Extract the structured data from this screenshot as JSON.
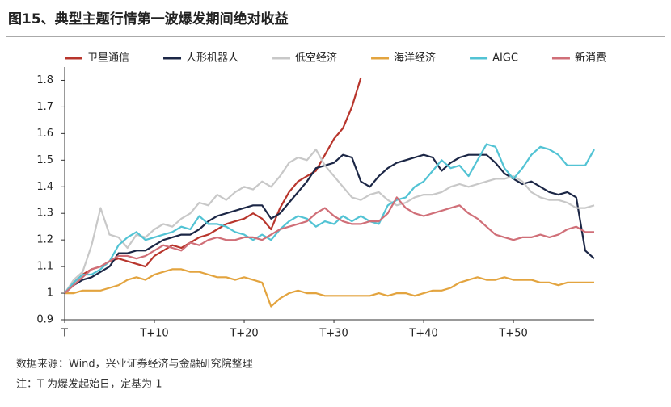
{
  "chart_data": {
    "type": "line",
    "title": "图15、典型主题行情第一波爆发期间绝对收益",
    "source": "数据来源：Wind，兴业证券经济与金融研究院整理",
    "note": "注：T 为爆发起始日，定基为 1",
    "x": [
      0,
      1,
      2,
      3,
      4,
      5,
      6,
      7,
      8,
      9,
      10,
      11,
      12,
      13,
      14,
      15,
      16,
      17,
      18,
      19,
      20,
      21,
      22,
      23,
      24,
      25,
      26,
      27,
      28,
      29,
      30,
      31,
      32,
      33,
      34,
      35,
      36,
      37,
      38,
      39,
      40,
      41,
      42,
      43,
      44,
      45,
      46,
      47,
      48,
      49,
      50,
      51,
      52,
      53,
      54,
      55,
      56,
      57,
      58,
      59
    ],
    "xlim": [
      0,
      59
    ],
    "xticks": [
      {
        "value": 0,
        "label": "T"
      },
      {
        "value": 10,
        "label": "T+10"
      },
      {
        "value": 20,
        "label": "T+20"
      },
      {
        "value": 30,
        "label": "T+30"
      },
      {
        "value": 40,
        "label": "T+40"
      },
      {
        "value": 50,
        "label": "T+50"
      }
    ],
    "ylim": [
      0.9,
      1.85
    ],
    "yticks": [
      0.9,
      1,
      1.1,
      1.2,
      1.3,
      1.4,
      1.5,
      1.6,
      1.7,
      1.8
    ],
    "grid": false,
    "legend": "top",
    "series": [
      {
        "name": "卫星通信",
        "color": "#b8352c",
        "values": [
          1.0,
          1.04,
          1.07,
          1.09,
          1.1,
          1.12,
          1.13,
          1.12,
          1.11,
          1.1,
          1.14,
          1.16,
          1.18,
          1.17,
          1.19,
          1.21,
          1.22,
          1.24,
          1.26,
          1.27,
          1.28,
          1.3,
          1.28,
          1.24,
          1.32,
          1.38,
          1.42,
          1.44,
          1.46,
          1.52,
          1.58,
          1.62,
          1.7,
          1.81,
          null,
          null,
          null,
          null,
          null,
          null,
          null,
          null,
          null,
          null,
          null,
          null,
          null,
          null,
          null,
          null,
          null,
          null,
          null,
          null,
          null,
          null,
          null,
          null,
          null,
          null
        ]
      },
      {
        "name": "人形机器人",
        "color": "#1c2746",
        "values": [
          1.0,
          1.03,
          1.05,
          1.06,
          1.08,
          1.1,
          1.15,
          1.15,
          1.16,
          1.16,
          1.18,
          1.2,
          1.21,
          1.22,
          1.22,
          1.24,
          1.27,
          1.29,
          1.3,
          1.31,
          1.32,
          1.33,
          1.33,
          1.28,
          1.3,
          1.34,
          1.38,
          1.42,
          1.47,
          1.48,
          1.49,
          1.52,
          1.51,
          1.42,
          1.4,
          1.44,
          1.47,
          1.49,
          1.5,
          1.51,
          1.52,
          1.51,
          1.46,
          1.49,
          1.51,
          1.52,
          1.52,
          1.52,
          1.49,
          1.45,
          1.43,
          1.41,
          1.42,
          1.4,
          1.38,
          1.37,
          1.38,
          1.36,
          1.16,
          1.13
        ]
      },
      {
        "name": "低空经济",
        "color": "#c8c8c8",
        "values": [
          1.0,
          1.05,
          1.08,
          1.18,
          1.32,
          1.22,
          1.21,
          1.17,
          1.22,
          1.21,
          1.24,
          1.26,
          1.25,
          1.28,
          1.3,
          1.34,
          1.33,
          1.37,
          1.35,
          1.38,
          1.4,
          1.39,
          1.42,
          1.4,
          1.44,
          1.49,
          1.51,
          1.5,
          1.54,
          1.48,
          1.44,
          1.4,
          1.36,
          1.35,
          1.37,
          1.38,
          1.35,
          1.33,
          1.34,
          1.36,
          1.37,
          1.37,
          1.38,
          1.4,
          1.41,
          1.4,
          1.41,
          1.42,
          1.43,
          1.43,
          1.44,
          1.42,
          1.38,
          1.36,
          1.35,
          1.35,
          1.34,
          1.32,
          1.32,
          1.33
        ]
      },
      {
        "name": "海洋经济",
        "color": "#e3a43f",
        "values": [
          1.0,
          1.0,
          1.01,
          1.01,
          1.01,
          1.02,
          1.03,
          1.05,
          1.06,
          1.05,
          1.07,
          1.08,
          1.09,
          1.09,
          1.08,
          1.08,
          1.07,
          1.06,
          1.06,
          1.05,
          1.06,
          1.05,
          1.04,
          0.95,
          0.98,
          1.0,
          1.01,
          1.0,
          1.0,
          0.99,
          0.99,
          0.99,
          0.99,
          0.99,
          0.99,
          1.0,
          0.99,
          1.0,
          1.0,
          0.99,
          1.0,
          1.01,
          1.01,
          1.02,
          1.04,
          1.05,
          1.06,
          1.05,
          1.05,
          1.06,
          1.05,
          1.05,
          1.05,
          1.04,
          1.04,
          1.03,
          1.04,
          1.04,
          1.04,
          1.04
        ]
      },
      {
        "name": "AIGC",
        "color": "#52c3d4",
        "values": [
          1.0,
          1.04,
          1.07,
          1.07,
          1.09,
          1.12,
          1.18,
          1.21,
          1.23,
          1.2,
          1.21,
          1.22,
          1.23,
          1.25,
          1.24,
          1.29,
          1.26,
          1.26,
          1.25,
          1.23,
          1.22,
          1.2,
          1.22,
          1.2,
          1.24,
          1.27,
          1.29,
          1.28,
          1.25,
          1.27,
          1.26,
          1.29,
          1.27,
          1.29,
          1.27,
          1.26,
          1.33,
          1.35,
          1.36,
          1.4,
          1.42,
          1.46,
          1.5,
          1.47,
          1.48,
          1.44,
          1.5,
          1.56,
          1.55,
          1.47,
          1.43,
          1.47,
          1.52,
          1.55,
          1.54,
          1.52,
          1.48,
          1.48,
          1.48,
          1.54
        ]
      },
      {
        "name": "新消费",
        "color": "#d06f78",
        "values": [
          1.0,
          1.03,
          1.06,
          1.09,
          1.1,
          1.12,
          1.14,
          1.14,
          1.13,
          1.14,
          1.16,
          1.18,
          1.17,
          1.16,
          1.19,
          1.18,
          1.2,
          1.21,
          1.2,
          1.2,
          1.21,
          1.21,
          1.2,
          1.22,
          1.24,
          1.25,
          1.26,
          1.27,
          1.3,
          1.32,
          1.29,
          1.27,
          1.26,
          1.26,
          1.27,
          1.27,
          1.3,
          1.36,
          1.32,
          1.3,
          1.29,
          1.3,
          1.31,
          1.32,
          1.33,
          1.3,
          1.28,
          1.25,
          1.22,
          1.21,
          1.2,
          1.21,
          1.21,
          1.22,
          1.21,
          1.22,
          1.24,
          1.25,
          1.23,
          1.23
        ]
      }
    ]
  }
}
